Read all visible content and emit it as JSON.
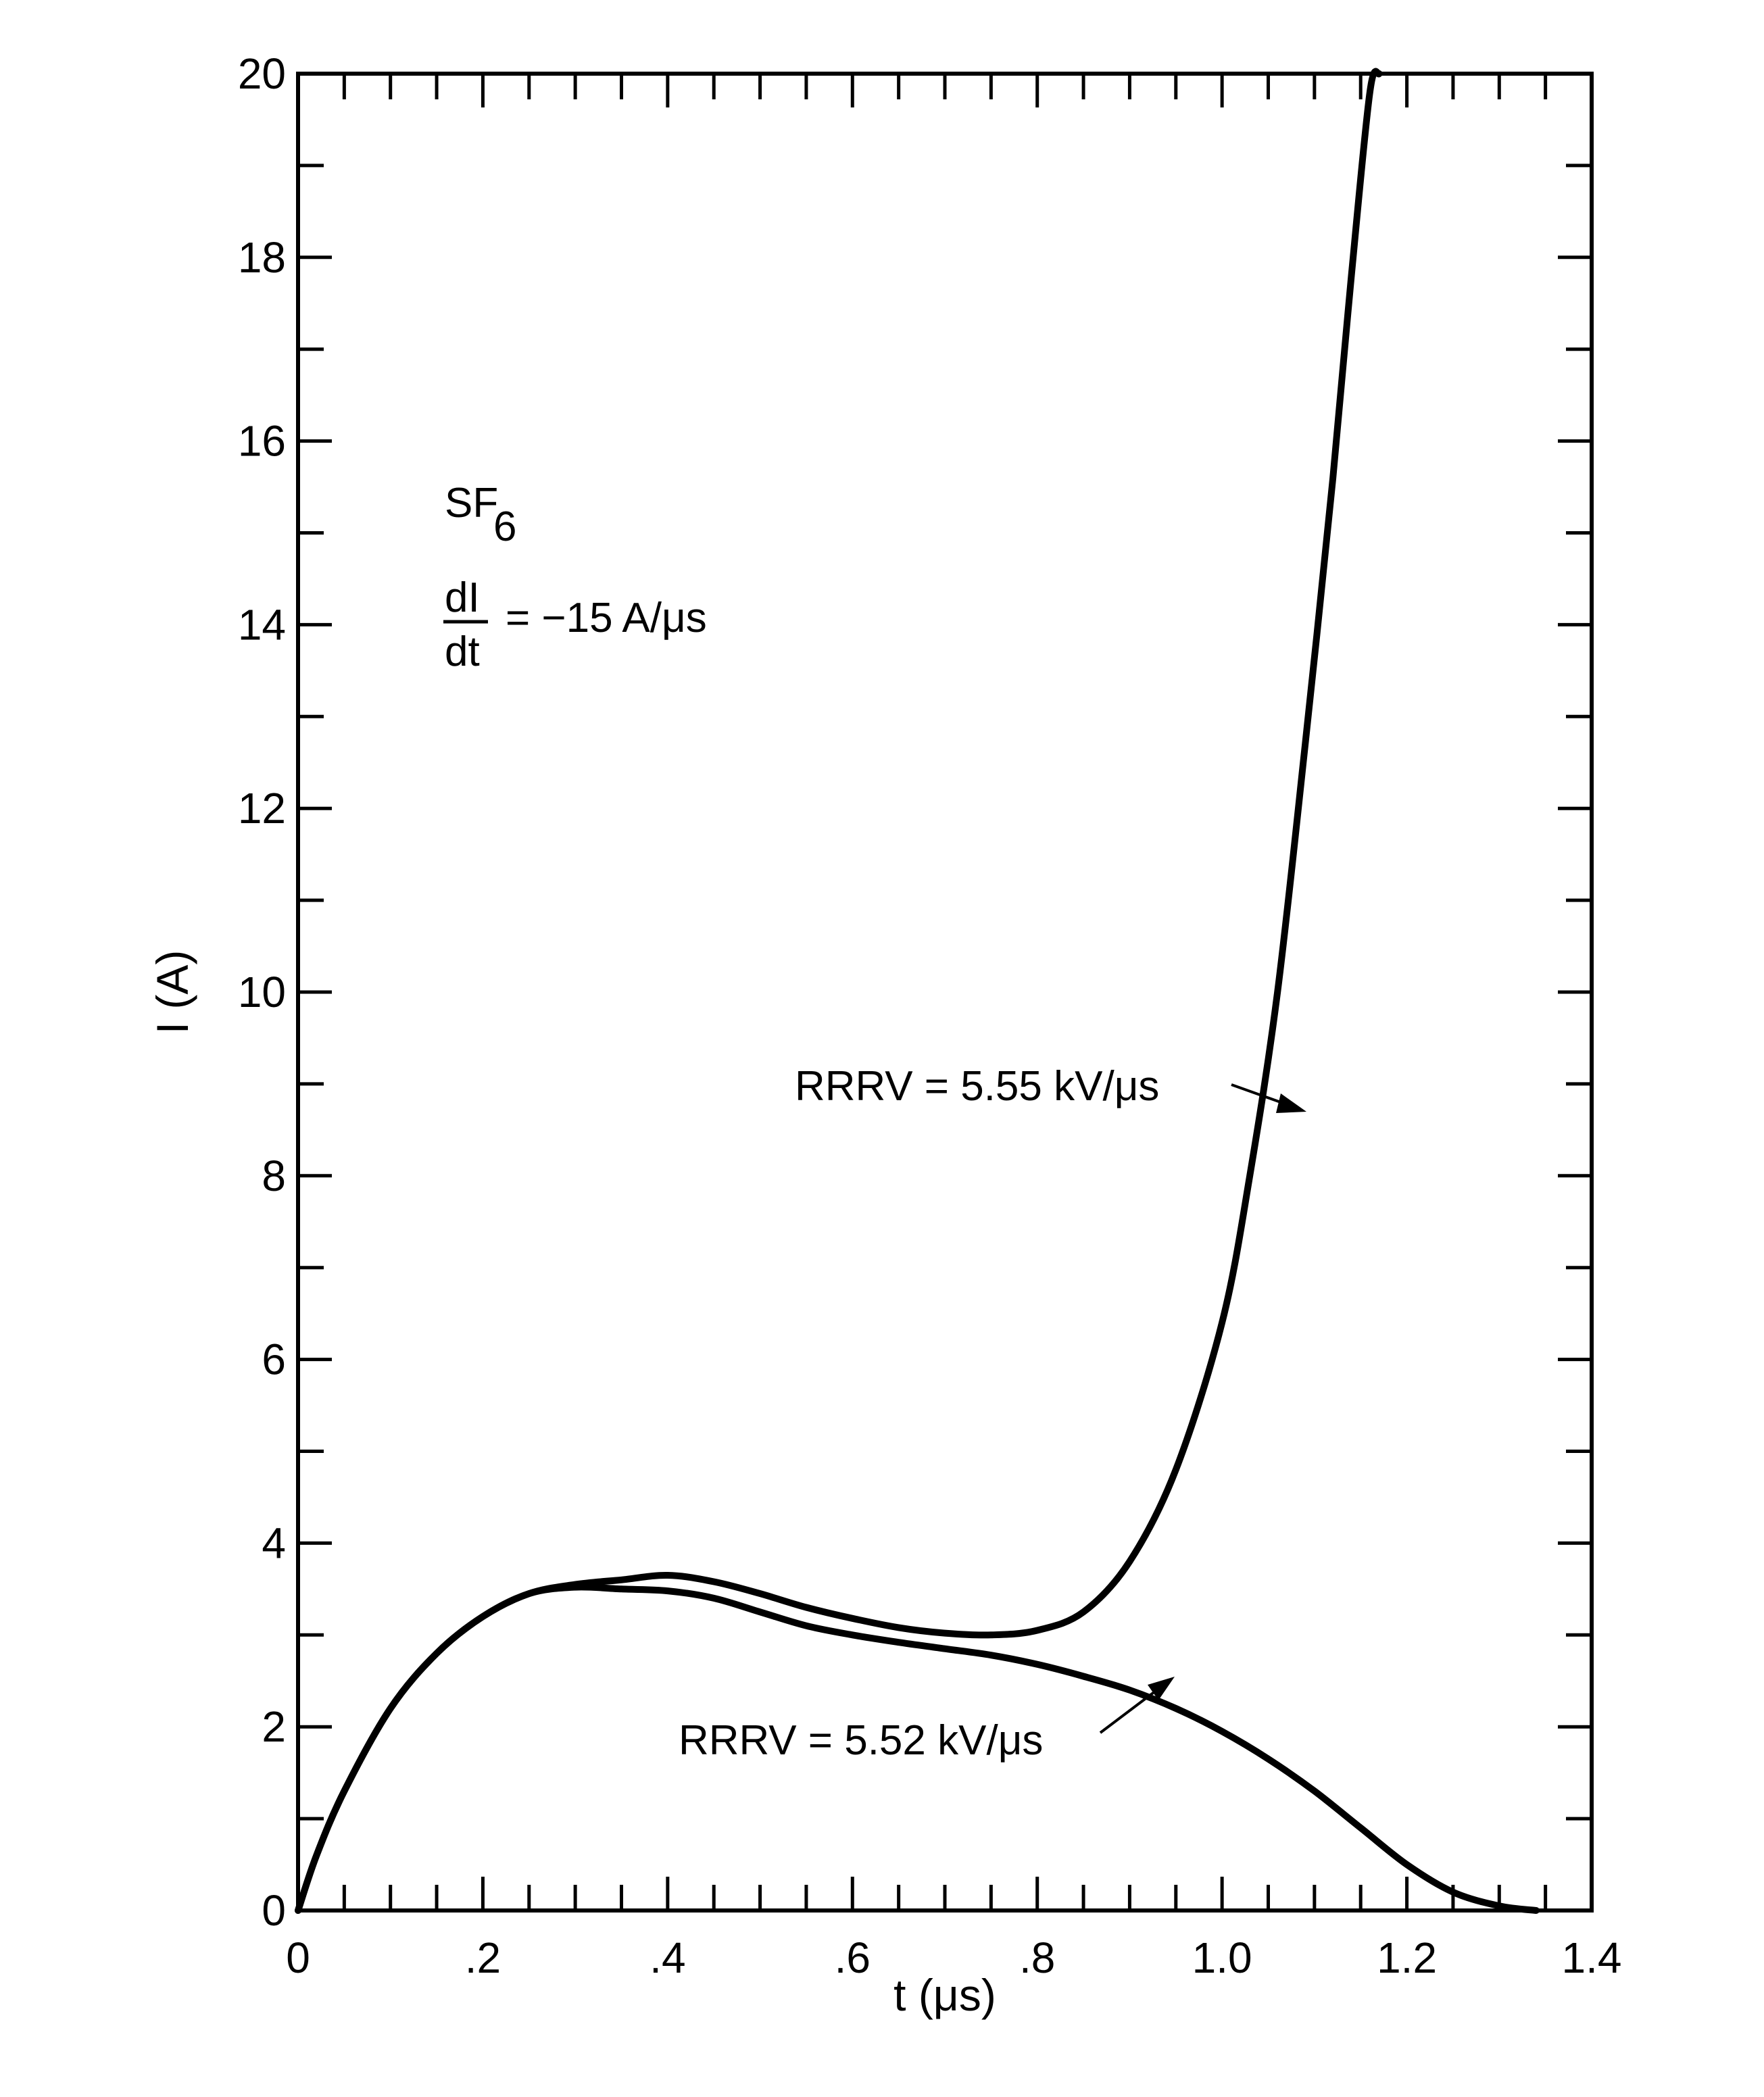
{
  "chart_data": {
    "type": "line",
    "title": "",
    "xlabel": "t (μs)",
    "ylabel": "I (A)",
    "xlim": [
      0,
      1.4
    ],
    "ylim": [
      0,
      20
    ],
    "x_ticks": [
      0,
      0.2,
      0.4,
      0.6,
      0.8,
      1.0,
      1.2,
      1.4
    ],
    "x_tick_labels": [
      "0",
      ".2",
      ".4",
      ".6",
      ".8",
      "1.0",
      "1.2",
      "1.4"
    ],
    "y_ticks": [
      0,
      2,
      4,
      6,
      8,
      10,
      12,
      14,
      16,
      18,
      20
    ],
    "y_tick_labels": [
      "0",
      "2",
      "4",
      "6",
      "8",
      "10",
      "12",
      "14",
      "16",
      "18",
      "20"
    ],
    "grid": false,
    "annotations": {
      "gas_label": "SF",
      "gas_subscript": "6",
      "didt_numerator": "dI",
      "didt_denominator": "dt",
      "didt_value": "= −15 A/μs"
    },
    "series": [
      {
        "name": "RRRV = 5.55 kV/μs",
        "x": [
          0,
          0.02,
          0.05,
          0.1,
          0.15,
          0.2,
          0.25,
          0.3,
          0.35,
          0.4,
          0.45,
          0.5,
          0.55,
          0.6,
          0.65,
          0.7,
          0.75,
          0.8,
          0.85,
          0.9,
          0.95,
          1.0,
          1.03,
          1.06,
          1.09,
          1.12,
          1.14,
          1.16,
          1.17
        ],
        "y": [
          0,
          0.6,
          1.3,
          2.2,
          2.8,
          3.2,
          3.45,
          3.55,
          3.6,
          3.65,
          3.58,
          3.45,
          3.3,
          3.18,
          3.08,
          3.02,
          3.0,
          3.05,
          3.25,
          3.8,
          4.8,
          6.4,
          8.0,
          10.0,
          12.7,
          15.6,
          17.8,
          19.8,
          20.0
        ]
      },
      {
        "name": "RRRV = 5.52 kV/μs",
        "x": [
          0,
          0.02,
          0.05,
          0.1,
          0.15,
          0.2,
          0.25,
          0.3,
          0.35,
          0.4,
          0.45,
          0.5,
          0.55,
          0.6,
          0.65,
          0.7,
          0.75,
          0.8,
          0.85,
          0.9,
          0.95,
          1.0,
          1.05,
          1.1,
          1.15,
          1.2,
          1.25,
          1.3,
          1.34
        ],
        "y": [
          0,
          0.6,
          1.3,
          2.2,
          2.8,
          3.2,
          3.45,
          3.52,
          3.5,
          3.48,
          3.4,
          3.25,
          3.1,
          3.0,
          2.92,
          2.85,
          2.78,
          2.68,
          2.55,
          2.4,
          2.2,
          1.95,
          1.65,
          1.3,
          0.9,
          0.5,
          0.2,
          0.05,
          0.0
        ]
      }
    ]
  }
}
